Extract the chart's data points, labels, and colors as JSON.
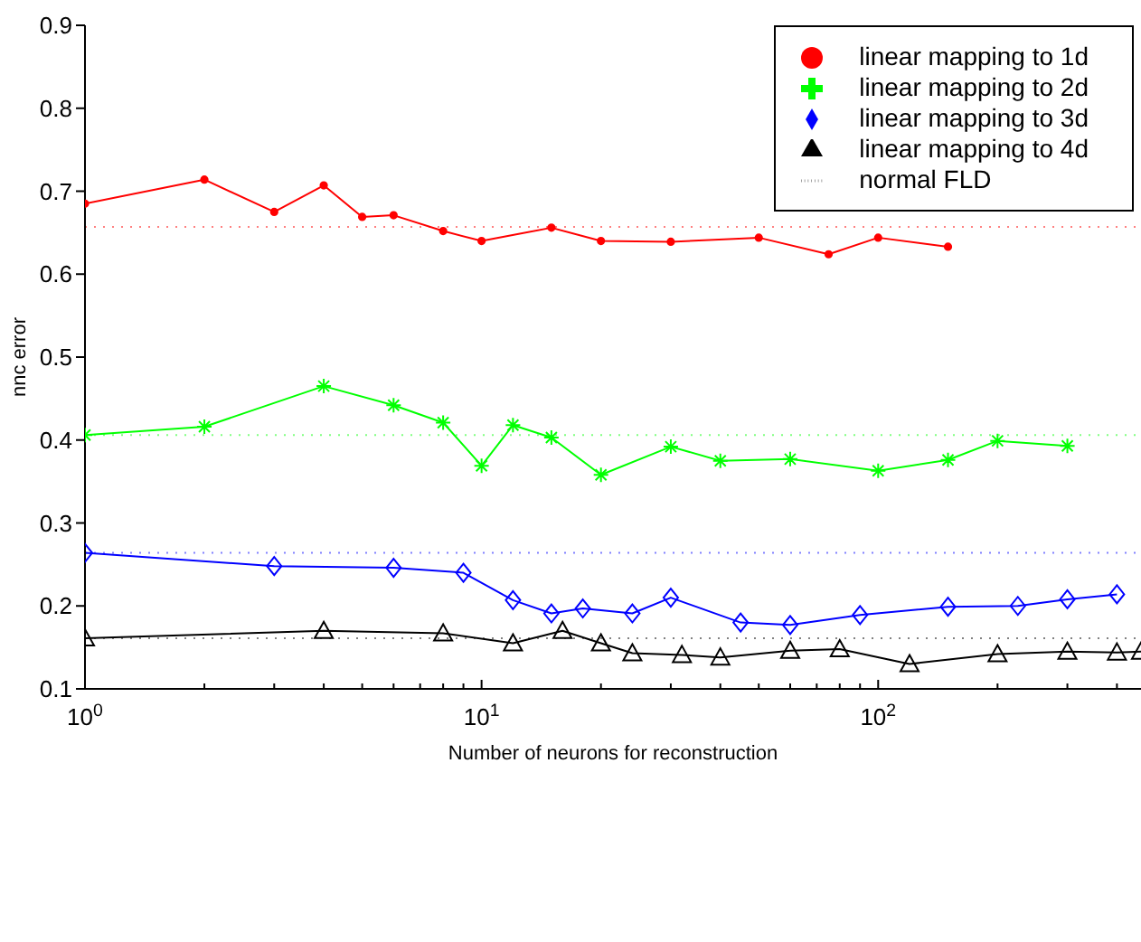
{
  "chart_data": {
    "type": "line",
    "xlabel": "Number of neurons for reconstruction",
    "ylabel": "nnc error",
    "log": "x",
    "xlim": [
      1,
      460
    ],
    "ylim": [
      0.1,
      0.9
    ],
    "xticks": [
      {
        "value": 1,
        "label": "10$^{0}$"
      },
      {
        "value": 2,
        "label": null
      },
      {
        "value": 3,
        "label": null
      },
      {
        "value": 4,
        "label": null
      },
      {
        "value": 5,
        "label": null
      },
      {
        "value": 6,
        "label": null
      },
      {
        "value": 7,
        "label": null
      },
      {
        "value": 8,
        "label": null
      },
      {
        "value": 9,
        "label": null
      },
      {
        "value": 10,
        "label": "10$^{1}$"
      },
      {
        "value": 20,
        "label": null
      },
      {
        "value": 30,
        "label": null
      },
      {
        "value": 40,
        "label": null
      },
      {
        "value": 50,
        "label": null
      },
      {
        "value": 60,
        "label": null
      },
      {
        "value": 70,
        "label": null
      },
      {
        "value": 80,
        "label": null
      },
      {
        "value": 90,
        "label": null
      },
      {
        "value": 100,
        "label": "10$^{2}$"
      },
      {
        "value": 200,
        "label": null
      },
      {
        "value": 300,
        "label": null
      },
      {
        "value": 400,
        "label": null
      }
    ],
    "yticks": [
      0.1,
      0.2,
      0.3,
      0.4,
      0.5,
      0.6,
      0.7,
      0.8,
      0.9
    ],
    "grid": false,
    "legend": "top right",
    "line_style": "solid",
    "series": [
      {
        "name": "linear mapping to 1d",
        "color": "#ff0000",
        "marker": "circle",
        "x": [
          1,
          2,
          3,
          4,
          5,
          6,
          8,
          10,
          15,
          20,
          30,
          50,
          75,
          100,
          150
        ],
        "values": [
          0.685,
          0.714,
          0.675,
          0.707,
          0.669,
          0.671,
          0.652,
          0.64,
          0.656,
          0.64,
          0.639,
          0.644,
          0.624,
          0.644,
          0.633
        ]
      },
      {
        "name": "linear mapping to 2d",
        "color": "#00ff00",
        "marker": "cross",
        "x": [
          1,
          2,
          4,
          6,
          8,
          10,
          12,
          15,
          20,
          30,
          40,
          60,
          100,
          150,
          200,
          300
        ],
        "values": [
          0.406,
          0.416,
          0.465,
          0.442,
          0.421,
          0.369,
          0.418,
          0.403,
          0.358,
          0.392,
          0.375,
          0.377,
          0.363,
          0.376,
          0.399,
          0.393
        ]
      },
      {
        "name": "linear mapping to 3d",
        "color": "#0000ff",
        "marker": "diamond",
        "x": [
          1,
          3,
          6,
          9,
          12,
          15,
          18,
          24,
          30,
          45,
          60,
          90,
          150,
          225,
          300,
          400
        ],
        "values": [
          0.264,
          0.248,
          0.246,
          0.24,
          0.207,
          0.191,
          0.197,
          0.191,
          0.21,
          0.18,
          0.177,
          0.189,
          0.199,
          0.2,
          0.208,
          0.214
        ]
      },
      {
        "name": "linear mapping to 4d",
        "color": "#000000",
        "marker": "triangle",
        "x": [
          1,
          4,
          8,
          12,
          16,
          20,
          24,
          32,
          40,
          60,
          80,
          120,
          200,
          300,
          400,
          460
        ],
        "values": [
          0.161,
          0.17,
          0.167,
          0.155,
          0.17,
          0.155,
          0.143,
          0.141,
          0.138,
          0.146,
          0.148,
          0.13,
          0.142,
          0.145,
          0.144,
          0.145
        ]
      }
    ],
    "ref_lines": [
      {
        "axis": "y",
        "value": 0.657,
        "color": "#ff8080",
        "line_style": "dotted",
        "label": null
      },
      {
        "axis": "y",
        "value": 0.406,
        "color": "#80ff80",
        "line_style": "dotted",
        "label": null
      },
      {
        "axis": "y",
        "value": 0.264,
        "color": "#8080ff",
        "line_style": "dotted",
        "label": null
      },
      {
        "axis": "y",
        "value": 0.161,
        "color": "#808080",
        "line_style": "dotted",
        "label": "normal FLD"
      }
    ]
  }
}
